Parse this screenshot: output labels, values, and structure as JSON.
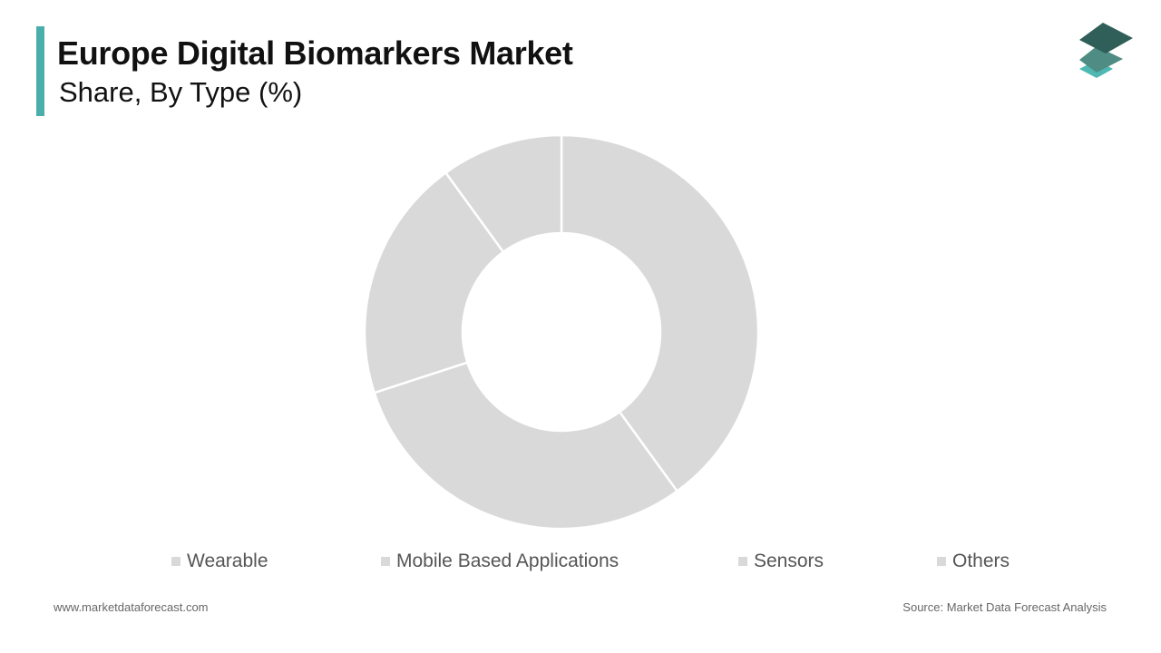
{
  "header": {
    "title": "Europe Digital Biomarkers Market",
    "subtitle": "Share, By Type (%)"
  },
  "colors": {
    "accent": "#4aaeaa",
    "slice": "#d9d9d9",
    "slice_border": "#ffffff",
    "logo_dark": "#2f5f58",
    "logo_mid": "#4e8c84",
    "logo_light": "#4fb8b2"
  },
  "chart_data": {
    "type": "pie",
    "donut": true,
    "legend_position": "bottom",
    "categories": [
      "Wearable",
      "Mobile Based Applications",
      "Sensors",
      "Others"
    ],
    "values": [
      40,
      30,
      20,
      10
    ]
  },
  "footer": {
    "website": "www.marketdataforecast.com",
    "source": "Source: Market Data Forecast Analysis"
  }
}
